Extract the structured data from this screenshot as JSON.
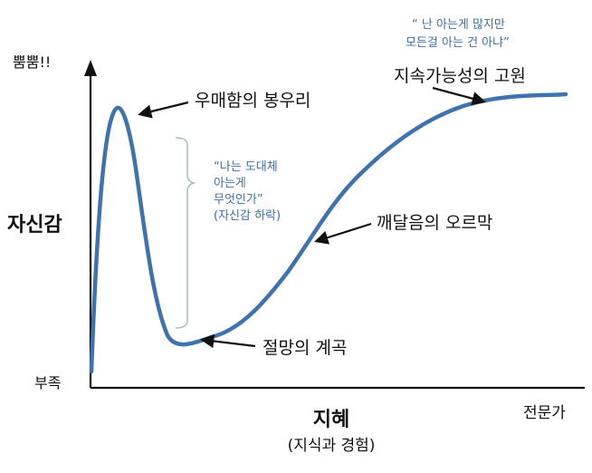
{
  "axes": {
    "y_title": "자신감",
    "y_top": "뿜뿜!!",
    "y_bottom": "부족",
    "x_title": "지혜",
    "x_subtitle": "(지식과 경험)",
    "x_right": "전문가"
  },
  "stages": {
    "peak": "우매함의 봉우리",
    "valley": "절망의 계곡",
    "slope": "깨달음의 오르막",
    "plateau": "지속가능성의 고원"
  },
  "notes": {
    "drop_lines": [
      "“나는 도대체",
      "아는게",
      "무엇인가”",
      "(자신감 하락)"
    ],
    "plateau_lines": [
      "“ 난 아는게 많지만",
      "모든걸 아는 건 아냐”"
    ]
  },
  "colors": {
    "curve": "#3f73b0",
    "axis": "#111111",
    "note": "#3e6fa8",
    "bracket": "#a9c3b4"
  }
}
